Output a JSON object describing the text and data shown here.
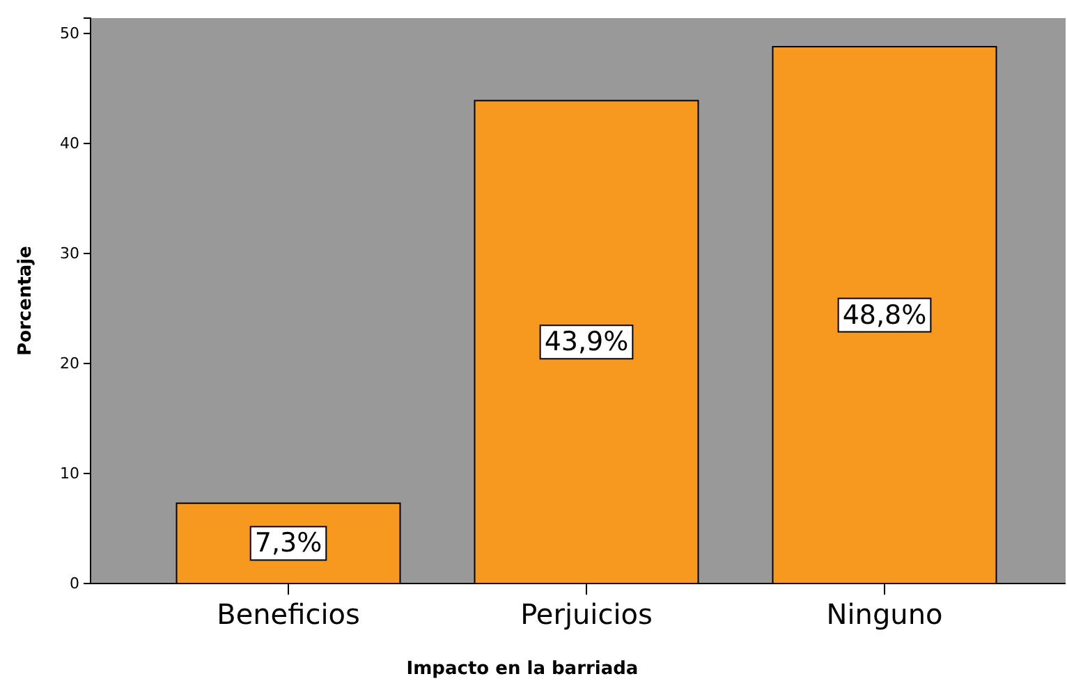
{
  "chart_data": {
    "type": "bar",
    "xlabel": "Impacto en la barriada",
    "ylabel": "Porcentaje",
    "categories": [
      "Beneficios",
      "Perjuicios",
      "Ninguno"
    ],
    "values": [
      7.3,
      43.9,
      48.8
    ],
    "color": "#f7991f",
    "value_labels": [
      "7,3%",
      "43,9%",
      "48,8%"
    ],
    "ylim": [
      0,
      51.4
    ],
    "yticks": [
      0,
      10,
      20,
      30,
      40,
      50
    ],
    "grid": false
  }
}
